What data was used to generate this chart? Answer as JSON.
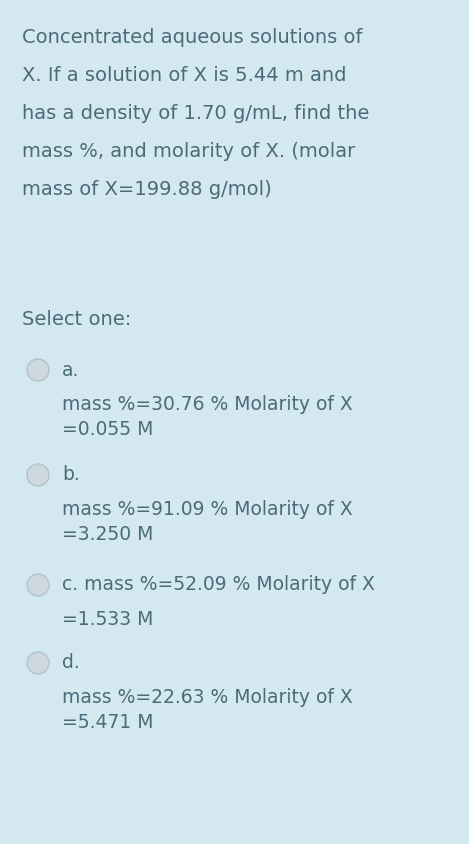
{
  "background_color": "#d4e8f0",
  "text_color": "#4a6b7a",
  "question_lines": [
    "Concentrated aqueous solutions of",
    "X. If a solution of X is 5.44 m and",
    "has a density of 1.70 g/mL, find the",
    "mass %, and molarity of X. (molar",
    "mass of X=199.88 g/mol)"
  ],
  "select_label": "Select one:",
  "options": [
    {
      "letter": "a.",
      "line1": "mass %=30.76 % Molarity of X",
      "line2": "=0.055 M",
      "inline": false
    },
    {
      "letter": "b.",
      "line1": "mass %=91.09 % Molarity of X",
      "line2": "=3.250 M",
      "inline": false
    },
    {
      "letter": "c.",
      "line1": "c. mass %=52.09 % Molarity of X",
      "line2": "=1.533 M",
      "inline": true
    },
    {
      "letter": "d.",
      "line1": "mass %=22.63 % Molarity of X",
      "line2": "=5.471 M",
      "inline": false
    }
  ],
  "circle_facecolor": "#cdd8df",
  "circle_edgecolor": "#b0c4ce",
  "question_fontsize": 14.0,
  "select_fontsize": 14.0,
  "option_fontsize": 13.5,
  "letter_fontsize": 13.5
}
